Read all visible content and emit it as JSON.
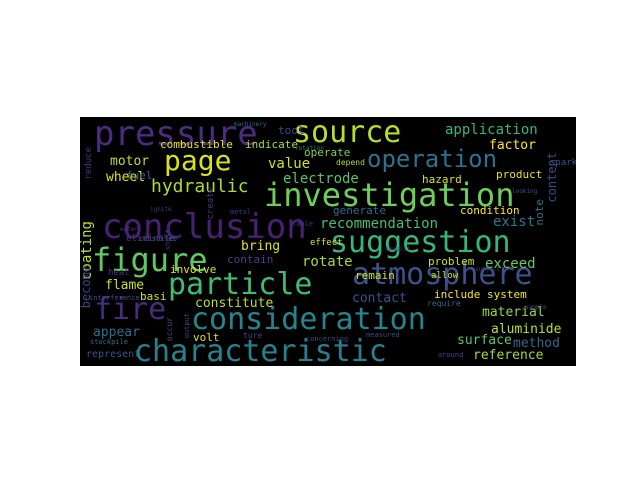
{
  "words": [
    {
      "text": "pressure",
      "size": 34,
      "color": "#4b2d7f"
    },
    {
      "text": "source",
      "size": 30,
      "color": "#b5de2b"
    },
    {
      "text": "application",
      "size": 14,
      "color": "#35b779"
    },
    {
      "text": "page",
      "size": 28,
      "color": "#d8e219"
    },
    {
      "text": "operation",
      "size": 24,
      "color": "#2c728e"
    },
    {
      "text": "factor",
      "size": 13,
      "color": "#fde725"
    },
    {
      "text": "hydraulic",
      "size": 18,
      "color": "#addc30"
    },
    {
      "text": "investigation",
      "size": 32,
      "color": "#6ece58"
    },
    {
      "text": "conclusion",
      "size": 34,
      "color": "#482173"
    },
    {
      "text": "suggestion",
      "size": 30,
      "color": "#35b779"
    },
    {
      "text": "figure",
      "size": 32,
      "color": "#5ec962"
    },
    {
      "text": "particle",
      "size": 30,
      "color": "#3fbc73"
    },
    {
      "text": "atmosphere",
      "size": 30,
      "color": "#3b528b"
    },
    {
      "text": "fire",
      "size": 30,
      "color": "#472d7b"
    },
    {
      "text": "consideration",
      "size": 30,
      "color": "#25858e"
    },
    {
      "text": "characteristic",
      "size": 30,
      "color": "#26828e"
    },
    {
      "text": "motor",
      "size": 13,
      "color": "#c2df23"
    },
    {
      "text": "wheel",
      "size": 13,
      "color": "#dde318"
    },
    {
      "text": "combustible",
      "size": 11,
      "color": "#e5e419"
    },
    {
      "text": "indicate",
      "size": 11,
      "color": "#a8db34"
    },
    {
      "text": "operate",
      "size": 11,
      "color": "#7ad151"
    },
    {
      "text": "tool",
      "size": 11,
      "color": "#3e4989"
    },
    {
      "text": "fuel",
      "size": 11,
      "color": "#31688e"
    },
    {
      "text": "value",
      "size": 14,
      "color": "#d0e11c"
    },
    {
      "text": "electrode",
      "size": 14,
      "color": "#52c569"
    },
    {
      "text": "coating",
      "size": 14,
      "color": "#bddf26"
    },
    {
      "text": "bring",
      "size": 13,
      "color": "#dde318"
    },
    {
      "text": "recommendation",
      "size": 14,
      "color": "#44bf70"
    },
    {
      "text": "exist",
      "size": 14,
      "color": "#2a788e"
    },
    {
      "text": "rotate",
      "size": 14,
      "color": "#a5db36"
    },
    {
      "text": "exceed",
      "size": 14,
      "color": "#65cb5e"
    },
    {
      "text": "hazard",
      "size": 11,
      "color": "#d8e219"
    },
    {
      "text": "product",
      "size": 11,
      "color": "#e7e419"
    },
    {
      "text": "condition",
      "size": 11,
      "color": "#fde725"
    },
    {
      "text": "generate",
      "size": 11,
      "color": "#31688e"
    },
    {
      "text": "problem",
      "size": 11,
      "color": "#cde11d"
    },
    {
      "text": "remain",
      "size": 11,
      "color": "#d5e21a"
    },
    {
      "text": "content",
      "size": 12,
      "color": "#3e4a89"
    },
    {
      "text": "note",
      "size": 11,
      "color": "#2c728e"
    },
    {
      "text": "flame",
      "size": 13,
      "color": "#c8e020"
    },
    {
      "text": "involve",
      "size": 11,
      "color": "#e2e418"
    },
    {
      "text": "contain",
      "size": 11,
      "color": "#414487"
    },
    {
      "text": "constitute",
      "size": 13,
      "color": "#b8de29"
    },
    {
      "text": "contact",
      "size": 13,
      "color": "#3b528b"
    },
    {
      "text": "include system",
      "size": 11,
      "color": "#f8e621"
    },
    {
      "text": "material",
      "size": 13,
      "color": "#95d840"
    },
    {
      "text": "aluminide",
      "size": 13,
      "color": "#c0df25"
    },
    {
      "text": "become",
      "size": 12,
      "color": "#414487"
    },
    {
      "text": "appear",
      "size": 13,
      "color": "#2d708e"
    },
    {
      "text": "basi",
      "size": 11,
      "color": "#cae11f"
    },
    {
      "text": "volt",
      "size": 11,
      "color": "#e2e418"
    },
    {
      "text": "surface",
      "size": 13,
      "color": "#58c765"
    },
    {
      "text": "method",
      "size": 13,
      "color": "#31688e"
    },
    {
      "text": "reference",
      "size": 13,
      "color": "#a2da37"
    },
    {
      "text": "represent",
      "size": 10,
      "color": "#3b528b"
    },
    {
      "text": "effect",
      "size": 9,
      "color": "#d8e219"
    },
    {
      "text": "heat",
      "size": 9,
      "color": "#46337f"
    },
    {
      "text": "create",
      "size": 9,
      "color": "#453781"
    },
    {
      "text": "reduce",
      "size": 9,
      "color": "#46327e"
    },
    {
      "text": "eliminate",
      "size": 9,
      "color": "#453882"
    },
    {
      "text": "spark",
      "size": 9,
      "color": "#3b528b"
    },
    {
      "text": "allow",
      "size": 9,
      "color": "#d2e21b"
    },
    {
      "text": "depend",
      "size": 8,
      "color": "#b2dd2d"
    },
    {
      "text": "require",
      "size": 8,
      "color": "#31688e"
    },
    {
      "text": "ture",
      "size": 8,
      "color": "#3e4989"
    },
    {
      "text": "occur",
      "size": 8,
      "color": "#3b528b"
    },
    {
      "text": "table",
      "size": 7,
      "color": "#46337f"
    },
    {
      "text": "shaft",
      "size": 7,
      "color": "#46337f"
    },
    {
      "text": "measured",
      "size": 7,
      "color": "#3e4989"
    },
    {
      "text": "consulted",
      "size": 7,
      "color": "#3e4989"
    },
    {
      "text": "around",
      "size": 7,
      "color": "#3e4989"
    },
    {
      "text": "stockpile",
      "size": 7,
      "color": "#2c728e"
    },
    {
      "text": "interference",
      "size": 7,
      "color": "#3b528b"
    },
    {
      "text": "output",
      "size": 7,
      "color": "#3e4989"
    },
    {
      "text": "concerning",
      "size": 7,
      "color": "#3e4989"
    },
    {
      "text": "metal",
      "size": 7,
      "color": "#46337f"
    },
    {
      "text": "rotation",
      "size": 6,
      "color": "#26828e"
    },
    {
      "text": "machinery",
      "size": 6,
      "color": "#31688e"
    },
    {
      "text": "looking",
      "size": 6,
      "color": "#3b528b"
    },
    {
      "text": "ignite",
      "size": 6,
      "color": "#453781"
    },
    {
      "text": "subject",
      "size": 6,
      "color": "#46337f"
    },
    {
      "text": "water",
      "size": 6,
      "color": "#46337f"
    },
    {
      "text": "sample",
      "size": 6,
      "color": "#3e4989"
    },
    {
      "text": "consist",
      "size": 6,
      "color": "#46337f"
    }
  ]
}
